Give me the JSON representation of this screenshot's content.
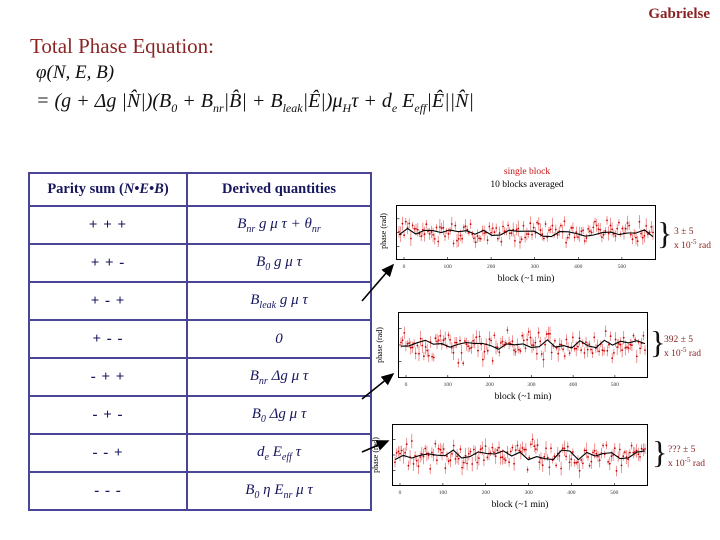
{
  "slide": {
    "author": "Gabrielse",
    "title": "Total Phase Equation:"
  },
  "equation": {
    "line1": "φ(N, E, B)",
    "line2_html": "= (g + Δg |N&#770;|)(B<sub>0</sub> + B<sub>nr</sub>|B&#770;| + B<sub>leak</sub>|Ê|)μ<sub>H</sub>τ + d<sub>e</sub> E<sub>eff</sub>|Ê||N&#770;|"
  },
  "table": {
    "header_parity_html": "Parity sum (<i>N</i>•<i>E</i>•<i>B</i>)",
    "header_derived": "Derived quantities",
    "rows": [
      {
        "parity": "+ + +",
        "derived_html": "B<sub>nr</sub> g μ τ + θ<sub>nr</sub>"
      },
      {
        "parity": "+ + -",
        "derived_html": "B<sub>0</sub> g μ τ"
      },
      {
        "parity": "+ - +",
        "derived_html": "B<sub>leak</sub> g μ τ"
      },
      {
        "parity": "+ - -",
        "derived_html": "0"
      },
      {
        "parity": "- + +",
        "derived_html": "B<sub>nr</sub> Δg μ τ"
      },
      {
        "parity": "- + -",
        "derived_html": "B<sub>0</sub> Δg μ τ"
      },
      {
        "parity": "- - +",
        "derived_html": "d<sub>e</sub> E<sub>eff</sub> τ"
      },
      {
        "parity": "- - -",
        "derived_html": "B<sub>0</sub> η E<sub>nr</sub> μ τ"
      }
    ]
  },
  "legend": {
    "single_block": "single block",
    "averaged": "10 blocks averaged"
  },
  "plots": [
    {
      "ylabel": "phase (rad)",
      "xlabel": "block (~1 min)",
      "x_ticks": [
        0,
        100,
        200,
        300,
        400,
        500
      ],
      "annotation_value": "3 ± 5",
      "annotation_unit_html": "x 10<sup>-5</sup> rad",
      "seed": 101
    },
    {
      "ylabel": "phase (rad)",
      "xlabel": "block (~1 min)",
      "x_ticks": [
        0,
        100,
        200,
        300,
        400,
        500
      ],
      "annotation_value": "392 ± 5",
      "annotation_unit_html": "x 10<sup>-5</sup> rad",
      "seed": 202
    },
    {
      "ylabel": "phase (rad)",
      "xlabel": "block (~1 min)",
      "x_ticks": [
        0,
        100,
        200,
        300,
        400,
        500
      ],
      "annotation_value": "??? ± 5",
      "annotation_unit_html": "x 10<sup>-5</sup> rad",
      "seed": 303
    }
  ],
  "colors": {
    "maroon_text": "#8b2222",
    "table_border": "#4b4596",
    "table_text": "#17175e",
    "single_block_red": "#c80000",
    "average_black": "#000000"
  }
}
